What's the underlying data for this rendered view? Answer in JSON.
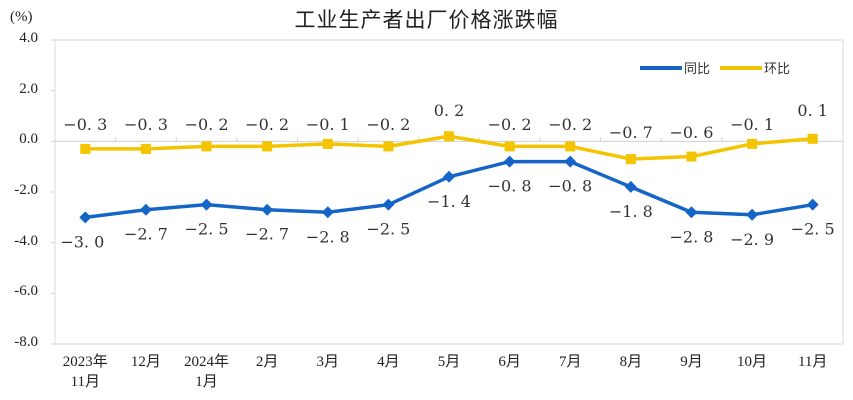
{
  "chart_data": {
    "type": "line",
    "title": "工业生产者出厂价格涨跌幅",
    "ylabel": "(%)",
    "xlabel": "",
    "ylim": [
      -8.0,
      4.0
    ],
    "yticks": [
      "4.0",
      "2.0",
      "0.0",
      "-2.0",
      "-4.0",
      "-6.0",
      "-8.0"
    ],
    "categories": [
      "2023年 11月",
      "12月",
      "2024年 1月",
      "2月",
      "3月",
      "4月",
      "5月",
      "6月",
      "7月",
      "8月",
      "9月",
      "10月",
      "11月"
    ],
    "series": [
      {
        "name": "同比",
        "color": "#1565c8",
        "marker": "diamond",
        "values": [
          -3.0,
          -2.7,
          -2.5,
          -2.7,
          -2.8,
          -2.5,
          -1.4,
          -0.8,
          -0.8,
          -1.8,
          -2.8,
          -2.9,
          -2.5
        ],
        "labels": [
          "-3.0",
          "-2.7",
          "-2.5",
          "-2.7",
          "-2.8",
          "-2.5",
          "-1.4",
          "-0.8",
          "-0.8",
          "-1.8",
          "-2.8",
          "-2.9",
          "-2.5"
        ]
      },
      {
        "name": "环比",
        "color": "#f5c400",
        "marker": "square",
        "values": [
          -0.3,
          -0.3,
          -0.2,
          -0.2,
          -0.1,
          -0.2,
          0.2,
          -0.2,
          -0.2,
          -0.7,
          -0.6,
          -0.1,
          0.1
        ],
        "labels": [
          "-0.3",
          "-0.3",
          "-0.2",
          "-0.2",
          "-0.1",
          "-0.2",
          "0.2",
          "-0.2",
          "-0.2",
          "-0.7",
          "-0.6",
          "-0.1",
          "0.1"
        ]
      }
    ],
    "legend_position": "top-right",
    "grid": false
  },
  "ui": {
    "title": "工业生产者出厂价格涨跌幅",
    "unit": "(%)",
    "legend": [
      {
        "label": "同比",
        "color": "#1565c8"
      },
      {
        "label": "环比",
        "color": "#f5c400"
      }
    ],
    "yticks": [
      "4.0",
      "2.0",
      "0.0",
      "-2.0",
      "-4.0",
      "-6.0",
      "-8.0"
    ],
    "xticks": [
      {
        "line1": "2023年",
        "line2": "11月"
      },
      {
        "line1": "12月",
        "line2": ""
      },
      {
        "line1": "2024年",
        "line2": "1月"
      },
      {
        "line1": "2月",
        "line2": ""
      },
      {
        "line1": "3月",
        "line2": ""
      },
      {
        "line1": "4月",
        "line2": ""
      },
      {
        "line1": "5月",
        "line2": ""
      },
      {
        "line1": "6月",
        "line2": ""
      },
      {
        "line1": "7月",
        "line2": ""
      },
      {
        "line1": "8月",
        "line2": ""
      },
      {
        "line1": "9月",
        "line2": ""
      },
      {
        "line1": "10月",
        "line2": ""
      },
      {
        "line1": "11月",
        "line2": ""
      }
    ]
  }
}
